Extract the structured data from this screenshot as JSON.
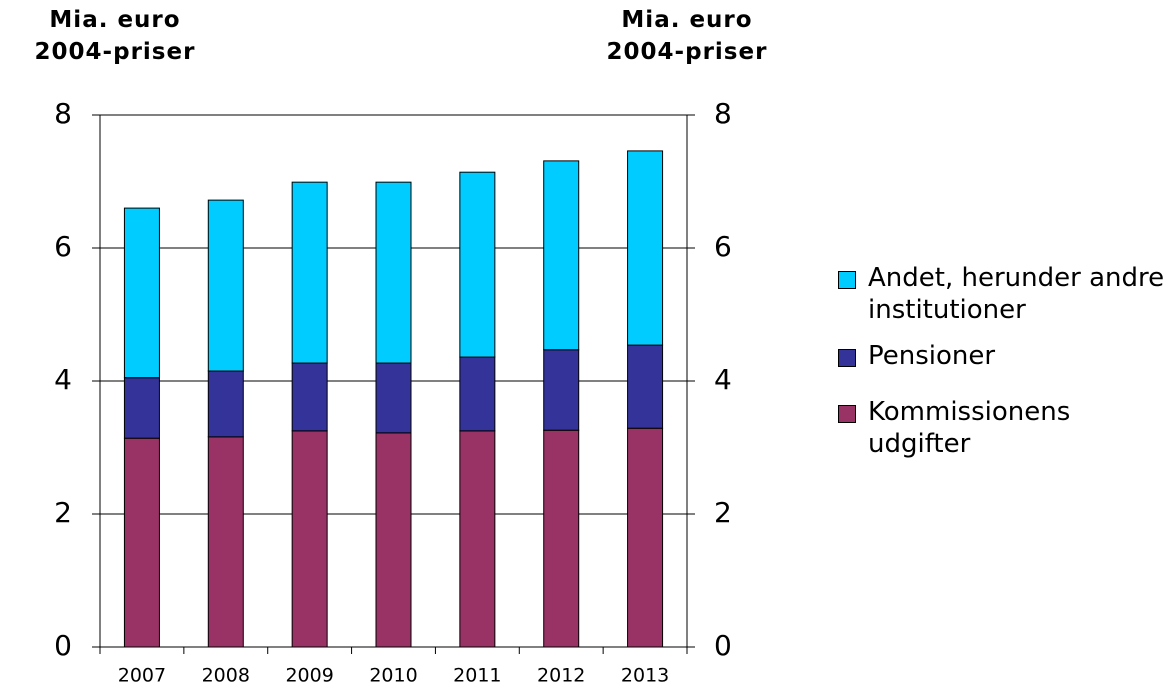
{
  "chart_data": {
    "type": "stacked_bar",
    "y_label": "Mia. euro\n2004-priser",
    "y2_label": "Mia. euro\n2004-priser",
    "categories": [
      "2007",
      "2008",
      "2009",
      "2010",
      "2011",
      "2012",
      "2013"
    ],
    "series": [
      {
        "name": "Kommissionens udgifter",
        "color": "#993366",
        "values": [
          3.14,
          3.16,
          3.25,
          3.22,
          3.25,
          3.26,
          3.29
        ]
      },
      {
        "name": "Pensioner",
        "color": "#333399",
        "values": [
          0.91,
          0.99,
          1.02,
          1.05,
          1.11,
          1.21,
          1.25
        ]
      },
      {
        "name": "Andet, herunder andre institutioner",
        "color": "#00CCFF",
        "values": [
          2.55,
          2.57,
          2.72,
          2.72,
          2.78,
          2.84,
          2.92
        ]
      }
    ],
    "ylim": [
      0,
      8
    ],
    "yticks": [
      0,
      2,
      4,
      6,
      8
    ],
    "y2lim": [
      0,
      8
    ],
    "y2ticks": [
      0,
      2,
      4,
      6,
      8
    ],
    "grid": true
  }
}
